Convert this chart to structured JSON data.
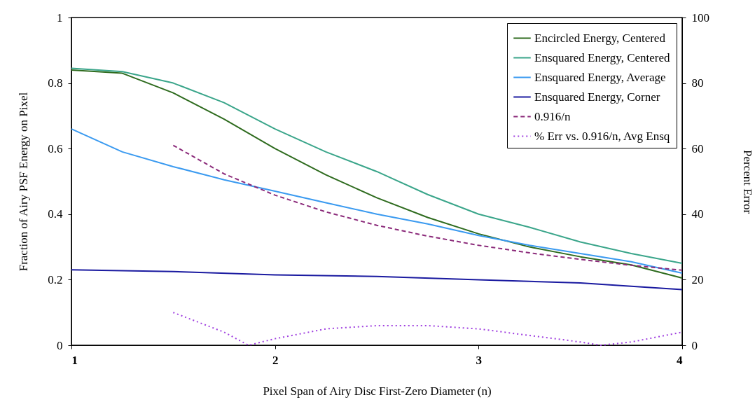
{
  "chart_data": {
    "type": "line",
    "xlabel": "Pixel Span of Airy Disc First-Zero Diameter (n)",
    "ylabel": "Fraction of Airy PSF Energy on Pixel",
    "y2label": "Percent Error",
    "xlim": [
      1,
      4
    ],
    "xticks": [
      1,
      2,
      3,
      4
    ],
    "ylim": [
      0,
      1
    ],
    "yticks": [
      0,
      0.2,
      0.4,
      0.6,
      0.8,
      1
    ],
    "y2lim": [
      0,
      100
    ],
    "y2ticks": [
      0,
      20,
      40,
      60,
      80,
      100
    ],
    "grid": false,
    "legend": "top right",
    "series": [
      {
        "name": "Encircled Energy, Centered",
        "color": "#2e6b1e",
        "line_style": "solid",
        "x": [
          1,
          1.25,
          1.5,
          1.75,
          2,
          2.25,
          2.5,
          2.75,
          3,
          3.25,
          3.5,
          3.75,
          4
        ],
        "values": [
          0.84,
          0.83,
          0.77,
          0.69,
          0.6,
          0.52,
          0.45,
          0.39,
          0.34,
          0.3,
          0.27,
          0.245,
          0.205
        ]
      },
      {
        "name": "Ensquared Energy, Centered",
        "color": "#3aa58a",
        "line_style": "solid",
        "x": [
          1,
          1.25,
          1.5,
          1.75,
          2,
          2.25,
          2.5,
          2.75,
          3,
          3.25,
          3.5,
          3.75,
          4
        ],
        "values": [
          0.845,
          0.835,
          0.8,
          0.74,
          0.66,
          0.59,
          0.53,
          0.46,
          0.4,
          0.36,
          0.315,
          0.28,
          0.25
        ]
      },
      {
        "name": "Ensquared Energy, Average",
        "color": "#3a9af0",
        "line_style": "solid",
        "x": [
          1,
          1.25,
          1.5,
          1.75,
          2,
          2.25,
          2.5,
          2.75,
          3,
          3.25,
          3.5,
          3.75,
          4
        ],
        "values": [
          0.66,
          0.59,
          0.545,
          0.505,
          0.47,
          0.435,
          0.4,
          0.37,
          0.335,
          0.305,
          0.28,
          0.255,
          0.22
        ]
      },
      {
        "name": "Ensquared Energy, Corner",
        "color": "#1a1aa0",
        "line_style": "solid",
        "x": [
          1,
          1.5,
          2,
          2.5,
          3,
          3.5,
          4
        ],
        "values": [
          0.23,
          0.225,
          0.215,
          0.21,
          0.2,
          0.19,
          0.17
        ]
      },
      {
        "name": "0.916/n",
        "color": "#8b2a7a",
        "line_style": "dashed",
        "x": [
          1.5,
          1.75,
          2,
          2.25,
          2.5,
          2.75,
          3,
          3.25,
          3.5,
          3.75,
          4
        ],
        "values": [
          0.61,
          0.523,
          0.458,
          0.407,
          0.366,
          0.333,
          0.305,
          0.282,
          0.262,
          0.244,
          0.229
        ]
      },
      {
        "name": "% Err vs. 0.916/n, Avg Ensq",
        "color": "#a040e0",
        "line_style": "dotted",
        "axis": "y2",
        "x": [
          1.5,
          1.75,
          1.87,
          2,
          2.25,
          2.5,
          2.75,
          3,
          3.25,
          3.5,
          3.6,
          3.75,
          4
        ],
        "values": [
          10,
          4,
          0,
          2,
          5,
          6,
          6,
          5,
          3,
          1,
          0,
          1,
          4
        ]
      }
    ]
  }
}
